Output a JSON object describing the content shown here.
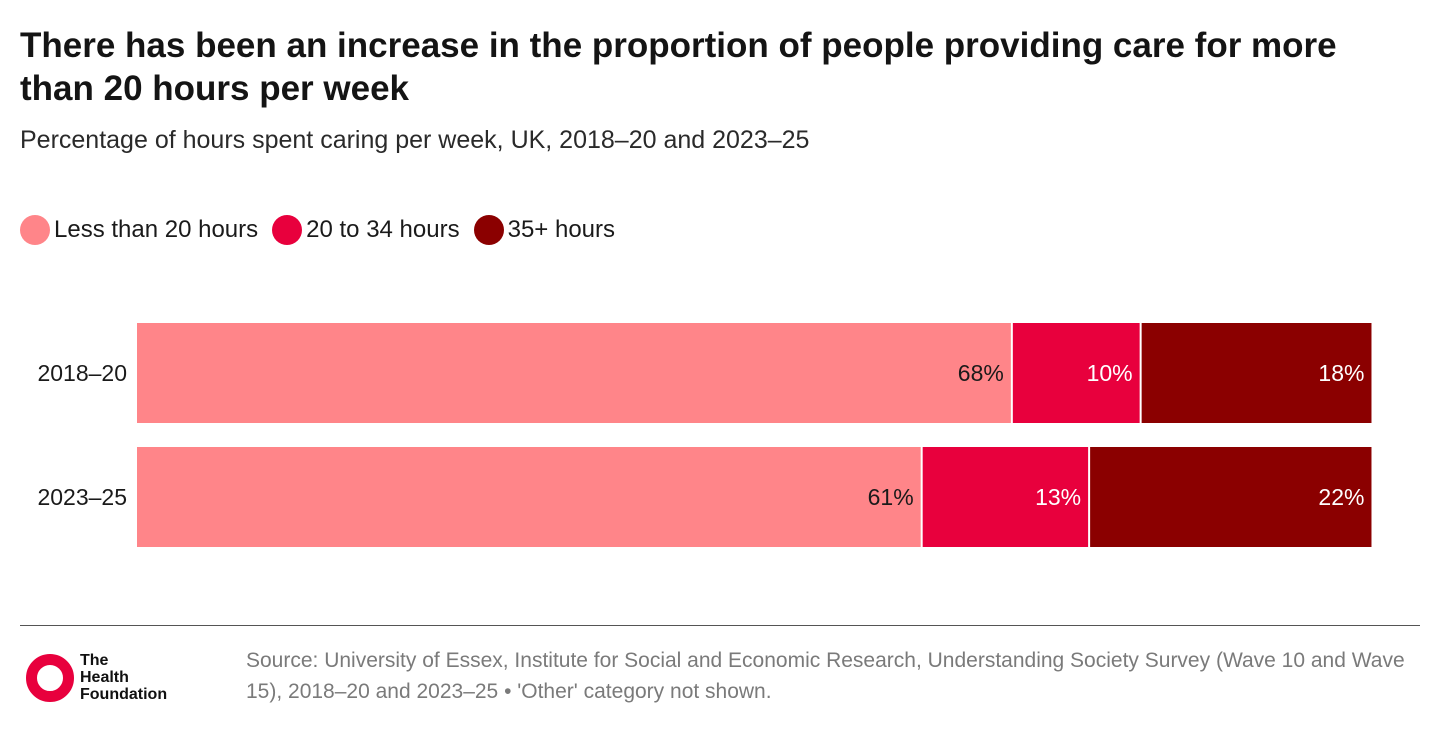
{
  "header": {
    "title": "There has been an increase in the proportion of people providing care for more than 20 hours per week",
    "subtitle": "Percentage of hours spent caring per week, UK, 2018–20 and 2023–25"
  },
  "legend": [
    {
      "label": "Less than 20 hours",
      "color": "#ff8589"
    },
    {
      "label": "20 to 34 hours",
      "color": "#e8003d"
    },
    {
      "label": "35+ hours",
      "color": "#8b0000"
    }
  ],
  "chart_data": {
    "type": "bar",
    "orientation": "horizontal",
    "stacked": true,
    "categories": [
      "2018–20",
      "2023–25"
    ],
    "series": [
      {
        "name": "Less than 20 hours",
        "values": [
          68,
          61
        ],
        "labels": [
          "68%",
          "61%"
        ],
        "color": "#ff8589",
        "label_color": "#1a1a1a"
      },
      {
        "name": "20 to 34 hours",
        "values": [
          10,
          13
        ],
        "labels": [
          "10%",
          "13%"
        ],
        "color": "#e8003d",
        "label_color": "#ffffff"
      },
      {
        "name": "35+ hours",
        "values": [
          18,
          22
        ],
        "labels": [
          "18%",
          "22%"
        ],
        "color": "#8b0000",
        "label_color": "#ffffff"
      }
    ],
    "xlim": [
      0,
      100
    ],
    "grid": false,
    "legend_position": "top-left"
  },
  "footer": {
    "logo_text": "The\nHealth\nFoundation",
    "source": "Source: University of Essex, Institute for Social and Economic Research, Understanding Society Survey (Wave 10 and Wave 15), 2018–20 and 2023–25 • 'Other' category not shown."
  }
}
